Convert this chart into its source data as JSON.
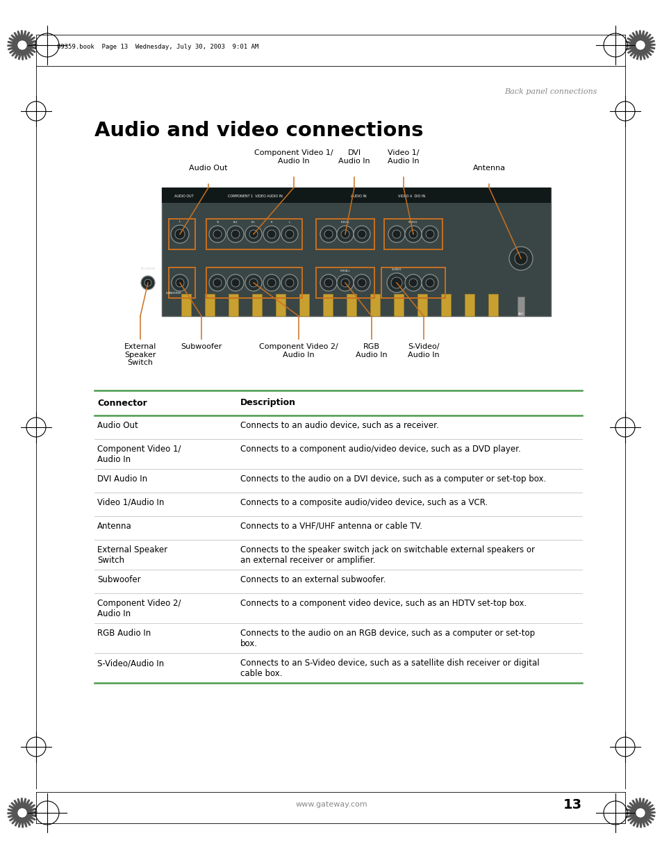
{
  "page_title": "Audio and video connections",
  "back_panel_label": "Back panel connections",
  "header_text": "09359.book  Page 13  Wednesday, July 30, 2003  9:01 AM",
  "footer_text": "www.gateway.com",
  "page_number": "13",
  "line_color": "#4a9a4a",
  "arrow_color": "#c87020",
  "bg_color": "#ffffff",
  "figsize": [
    9.54,
    12.35
  ],
  "dpi": 100,
  "table_rows": [
    [
      "Audio Out",
      "Connects to an audio device, such as a receiver."
    ],
    [
      "Component Video 1/\nAudio In",
      "Connects to a component audio/video device, such as a DVD player."
    ],
    [
      "DVI Audio In",
      "Connects to the audio on a DVI device, such as a computer or set-top box."
    ],
    [
      "Video 1/Audio In",
      "Connects to a composite audio/video device, such as a VCR."
    ],
    [
      "Antenna",
      "Connects to a VHF/UHF antenna or cable TV."
    ],
    [
      "External Speaker\nSwitch",
      "Connects to the speaker switch jack on switchable external speakers or\nan external receiver or amplifier."
    ],
    [
      "Subwoofer",
      "Connects to an external subwoofer."
    ],
    [
      "Component Video 2/\nAudio In",
      "Connects to a component video device, such as an HDTV set-top box."
    ],
    [
      "RGB Audio In",
      "Connects to the audio on an RGB device, such as a computer or set-top\nbox."
    ],
    [
      "S-Video/Audio In",
      "Connects to an S-Video device, such as a satellite dish receiver or digital\ncable box."
    ]
  ]
}
